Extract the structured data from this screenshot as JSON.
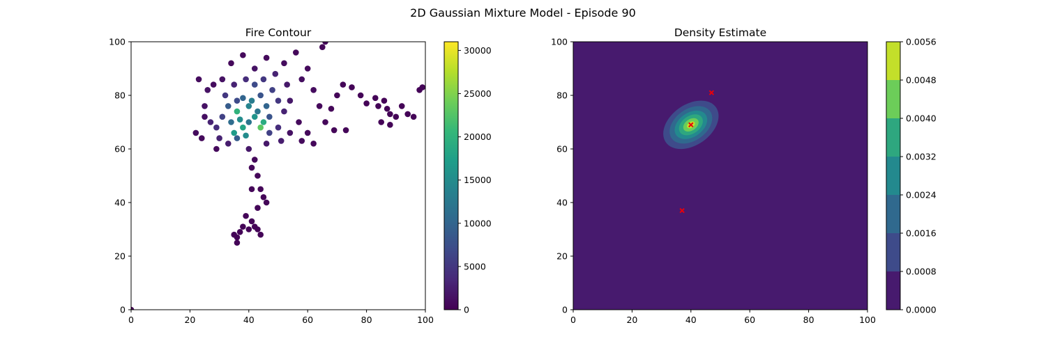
{
  "figure_title": "2D Gaussian Mixture Model - Episode 90",
  "colors": {
    "viridis": [
      "#440154",
      "#482878",
      "#3e4a89",
      "#31688e",
      "#26828e",
      "#1f9e89",
      "#35b779",
      "#6ece58",
      "#b5de2b",
      "#fde725"
    ],
    "marker": "#e8000b",
    "axis": "#000000"
  },
  "chart_data": [
    {
      "type": "scatter",
      "title": "Fire Contour",
      "xlabel": "",
      "ylabel": "",
      "xlim": [
        0,
        100
      ],
      "ylim": [
        0,
        100
      ],
      "x_ticks": [
        "0",
        "20",
        "40",
        "60",
        "80",
        "100"
      ],
      "y_ticks": [
        "0",
        "20",
        "40",
        "60",
        "80",
        "100"
      ],
      "grid": false,
      "colorbar": {
        "range": [
          0,
          31000
        ],
        "ticks": [
          "0",
          "5000",
          "10000",
          "15000",
          "20000",
          "25000",
          "30000"
        ],
        "tick_values": [
          0,
          5000,
          10000,
          15000,
          20000,
          25000,
          30000
        ],
        "colormap": "viridis"
      },
      "points": [
        {
          "x": 0,
          "y": 0,
          "v": 0
        },
        {
          "x": 36,
          "y": 74,
          "v": 20000
        },
        {
          "x": 38,
          "y": 68,
          "v": 18000
        },
        {
          "x": 44,
          "y": 68,
          "v": 23000
        },
        {
          "x": 37,
          "y": 71,
          "v": 15000
        },
        {
          "x": 40,
          "y": 76,
          "v": 14000
        },
        {
          "x": 42,
          "y": 72,
          "v": 16000
        },
        {
          "x": 35,
          "y": 66,
          "v": 17000
        },
        {
          "x": 45,
          "y": 70,
          "v": 19000
        },
        {
          "x": 39,
          "y": 65,
          "v": 15000
        },
        {
          "x": 41,
          "y": 78,
          "v": 13000
        },
        {
          "x": 43,
          "y": 74,
          "v": 12000
        },
        {
          "x": 34,
          "y": 70,
          "v": 11000
        },
        {
          "x": 38,
          "y": 79,
          "v": 10000
        },
        {
          "x": 46,
          "y": 76,
          "v": 10000
        },
        {
          "x": 40,
          "y": 70,
          "v": 12000
        },
        {
          "x": 33,
          "y": 76,
          "v": 9000
        },
        {
          "x": 47,
          "y": 72,
          "v": 8000
        },
        {
          "x": 36,
          "y": 64,
          "v": 9000
        },
        {
          "x": 44,
          "y": 80,
          "v": 8000
        },
        {
          "x": 42,
          "y": 84,
          "v": 7000
        },
        {
          "x": 31,
          "y": 72,
          "v": 6000
        },
        {
          "x": 48,
          "y": 82,
          "v": 6000
        },
        {
          "x": 50,
          "y": 78,
          "v": 5000
        },
        {
          "x": 32,
          "y": 80,
          "v": 5000
        },
        {
          "x": 45,
          "y": 86,
          "v": 5000
        },
        {
          "x": 39,
          "y": 86,
          "v": 4000
        },
        {
          "x": 29,
          "y": 68,
          "v": 4000
        },
        {
          "x": 52,
          "y": 74,
          "v": 3000
        },
        {
          "x": 50,
          "y": 68,
          "v": 4000
        },
        {
          "x": 30,
          "y": 64,
          "v": 3000
        },
        {
          "x": 27,
          "y": 70,
          "v": 3000
        },
        {
          "x": 35,
          "y": 84,
          "v": 3000
        },
        {
          "x": 53,
          "y": 84,
          "v": 2000
        },
        {
          "x": 49,
          "y": 88,
          "v": 3000
        },
        {
          "x": 54,
          "y": 78,
          "v": 2000
        },
        {
          "x": 40,
          "y": 60,
          "v": 2000
        },
        {
          "x": 46,
          "y": 62,
          "v": 2000
        },
        {
          "x": 25,
          "y": 76,
          "v": 1500
        },
        {
          "x": 26,
          "y": 82,
          "v": 1500
        },
        {
          "x": 23,
          "y": 86,
          "v": 1000
        },
        {
          "x": 22,
          "y": 66,
          "v": 1000
        },
        {
          "x": 24,
          "y": 64,
          "v": 800
        },
        {
          "x": 29,
          "y": 60,
          "v": 800
        },
        {
          "x": 31,
          "y": 86,
          "v": 1500
        },
        {
          "x": 38,
          "y": 95,
          "v": 800
        },
        {
          "x": 46,
          "y": 94,
          "v": 800
        },
        {
          "x": 52,
          "y": 92,
          "v": 1000
        },
        {
          "x": 56,
          "y": 96,
          "v": 600
        },
        {
          "x": 60,
          "y": 90,
          "v": 800
        },
        {
          "x": 65,
          "y": 98,
          "v": 500
        },
        {
          "x": 66,
          "y": 100,
          "v": 400
        },
        {
          "x": 58,
          "y": 86,
          "v": 1200
        },
        {
          "x": 62,
          "y": 82,
          "v": 1000
        },
        {
          "x": 57,
          "y": 70,
          "v": 800
        },
        {
          "x": 60,
          "y": 66,
          "v": 700
        },
        {
          "x": 62,
          "y": 62,
          "v": 600
        },
        {
          "x": 58,
          "y": 63,
          "v": 900
        },
        {
          "x": 64,
          "y": 76,
          "v": 700
        },
        {
          "x": 66,
          "y": 70,
          "v": 600
        },
        {
          "x": 69,
          "y": 67,
          "v": 500
        },
        {
          "x": 73,
          "y": 67,
          "v": 400
        },
        {
          "x": 68,
          "y": 75,
          "v": 500
        },
        {
          "x": 70,
          "y": 80,
          "v": 400
        },
        {
          "x": 72,
          "y": 84,
          "v": 400
        },
        {
          "x": 75,
          "y": 83,
          "v": 300
        },
        {
          "x": 78,
          "y": 80,
          "v": 300
        },
        {
          "x": 80,
          "y": 77,
          "v": 300
        },
        {
          "x": 83,
          "y": 79,
          "v": 300
        },
        {
          "x": 86,
          "y": 78,
          "v": 300
        },
        {
          "x": 87,
          "y": 75,
          "v": 300
        },
        {
          "x": 88,
          "y": 73,
          "v": 300
        },
        {
          "x": 90,
          "y": 72,
          "v": 300
        },
        {
          "x": 92,
          "y": 76,
          "v": 300
        },
        {
          "x": 94,
          "y": 73,
          "v": 300
        },
        {
          "x": 96,
          "y": 72,
          "v": 300
        },
        {
          "x": 98,
          "y": 82,
          "v": 300
        },
        {
          "x": 99,
          "y": 83,
          "v": 300
        },
        {
          "x": 85,
          "y": 70,
          "v": 300
        },
        {
          "x": 88,
          "y": 69,
          "v": 300
        },
        {
          "x": 84,
          "y": 76,
          "v": 300
        },
        {
          "x": 42,
          "y": 56,
          "v": 700
        },
        {
          "x": 41,
          "y": 53,
          "v": 600
        },
        {
          "x": 43,
          "y": 50,
          "v": 500
        },
        {
          "x": 41,
          "y": 45,
          "v": 500
        },
        {
          "x": 44,
          "y": 45,
          "v": 500
        },
        {
          "x": 45,
          "y": 42,
          "v": 400
        },
        {
          "x": 46,
          "y": 40,
          "v": 400
        },
        {
          "x": 43,
          "y": 38,
          "v": 400
        },
        {
          "x": 39,
          "y": 35,
          "v": 400
        },
        {
          "x": 41,
          "y": 33,
          "v": 400
        },
        {
          "x": 38,
          "y": 31,
          "v": 300
        },
        {
          "x": 37,
          "y": 29,
          "v": 300
        },
        {
          "x": 36,
          "y": 27,
          "v": 300
        },
        {
          "x": 36,
          "y": 25,
          "v": 300
        },
        {
          "x": 35,
          "y": 28,
          "v": 300
        },
        {
          "x": 40,
          "y": 30,
          "v": 300
        },
        {
          "x": 43,
          "y": 30,
          "v": 300
        },
        {
          "x": 44,
          "y": 28,
          "v": 300
        },
        {
          "x": 42,
          "y": 31,
          "v": 300
        },
        {
          "x": 47,
          "y": 66,
          "v": 6000
        },
        {
          "x": 36,
          "y": 78,
          "v": 7000
        },
        {
          "x": 33,
          "y": 62,
          "v": 2500
        },
        {
          "x": 51,
          "y": 63,
          "v": 2500
        },
        {
          "x": 54,
          "y": 66,
          "v": 1500
        },
        {
          "x": 34,
          "y": 92,
          "v": 700
        },
        {
          "x": 42,
          "y": 90,
          "v": 1500
        },
        {
          "x": 28,
          "y": 84,
          "v": 1000
        },
        {
          "x": 25,
          "y": 72,
          "v": 1200
        }
      ]
    },
    {
      "type": "heatmap",
      "title": "Density Estimate",
      "xlabel": "",
      "ylabel": "",
      "xlim": [
        0,
        100
      ],
      "ylim": [
        0,
        100
      ],
      "x_ticks": [
        "0",
        "20",
        "40",
        "60",
        "80",
        "100"
      ],
      "y_ticks": [
        "0",
        "20",
        "40",
        "60",
        "80",
        "100"
      ],
      "grid": false,
      "colorbar": {
        "range": [
          0,
          0.0056
        ],
        "ticks": [
          "0.0000",
          "0.0008",
          "0.0016",
          "0.0024",
          "0.0032",
          "0.0040",
          "0.0048",
          "0.0056"
        ],
        "tick_values": [
          0,
          0.0008,
          0.0016,
          0.0024,
          0.0032,
          0.004,
          0.0048,
          0.0056
        ],
        "level_colors": [
          "#471a6e",
          "#3e4b8a",
          "#30698e",
          "#23898e",
          "#2ea77f",
          "#6ccd59",
          "#c3df2a"
        ]
      },
      "contours": [
        {
          "level": 1,
          "cx": 40,
          "cy": 69,
          "rx": 10.4,
          "ry": 7.6,
          "angle": 35
        },
        {
          "level": 2,
          "cx": 40,
          "cy": 69,
          "rx": 8.0,
          "ry": 5.9,
          "angle": 35
        },
        {
          "level": 3,
          "cx": 40,
          "cy": 69,
          "rx": 6.1,
          "ry": 4.5,
          "angle": 35
        },
        {
          "level": 4,
          "cx": 40,
          "cy": 69,
          "rx": 4.5,
          "ry": 3.3,
          "angle": 35
        },
        {
          "level": 5,
          "cx": 40,
          "cy": 69,
          "rx": 2.9,
          "ry": 2.1,
          "angle": 35
        },
        {
          "level": 6,
          "cx": 40,
          "cy": 69,
          "rx": 1.5,
          "ry": 1.1,
          "angle": 35
        }
      ],
      "means": [
        {
          "x": 40,
          "y": 69
        },
        {
          "x": 47,
          "y": 81
        },
        {
          "x": 37,
          "y": 37
        }
      ]
    }
  ]
}
